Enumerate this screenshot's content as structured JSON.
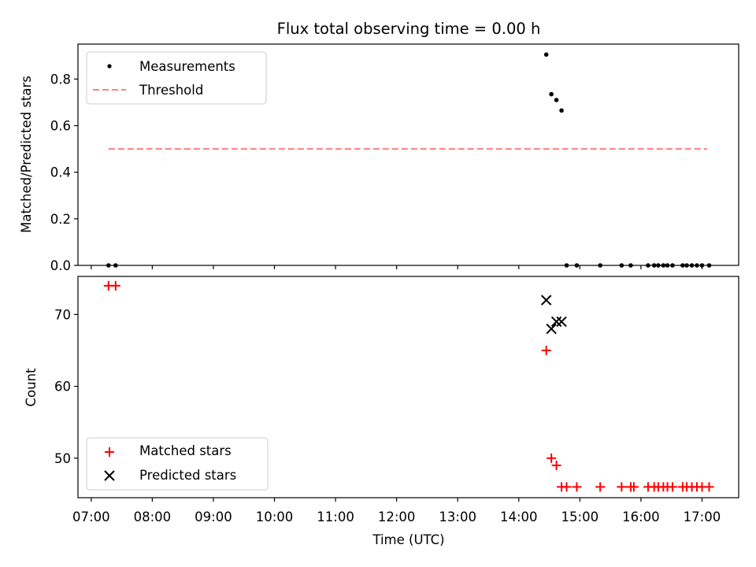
{
  "chart_data": [
    {
      "type": "scatter",
      "title": "Flux total observing time = 0.00 h",
      "xlabel": "",
      "ylabel": "Matched/Predicted stars",
      "xlim": [
        "06:47",
        "17:36"
      ],
      "ylim": [
        0,
        0.95
      ],
      "yticks": [
        "0.0",
        "0.2",
        "0.4",
        "0.6",
        "0.8"
      ],
      "legend": {
        "position": "top-left",
        "entries": [
          "Measurements",
          "Threshold"
        ]
      },
      "threshold": {
        "value": 0.5,
        "x_start": "07:17",
        "x_end": "17:05",
        "color": "#ff7f7f"
      },
      "series": [
        {
          "name": "Measurements",
          "color": "#000000",
          "points": [
            [
              "07:17",
              0.0
            ],
            [
              "07:24",
              0.0
            ],
            [
              "14:27",
              0.905
            ],
            [
              "14:32",
              0.735
            ],
            [
              "14:37",
              0.71
            ],
            [
              "14:42",
              0.665
            ],
            [
              "14:47",
              0.0
            ],
            [
              "14:57",
              0.0
            ],
            [
              "15:20",
              0.0
            ],
            [
              "15:41",
              0.0
            ],
            [
              "15:50",
              0.0
            ],
            [
              "16:07",
              0.0
            ],
            [
              "16:13",
              0.0
            ],
            [
              "16:17",
              0.0
            ],
            [
              "16:22",
              0.0
            ],
            [
              "16:26",
              0.0
            ],
            [
              "16:31",
              0.0
            ],
            [
              "16:41",
              0.0
            ],
            [
              "16:45",
              0.0
            ],
            [
              "16:50",
              0.0
            ],
            [
              "16:55",
              0.0
            ],
            [
              "17:00",
              0.0
            ],
            [
              "17:07",
              0.0
            ]
          ]
        }
      ]
    },
    {
      "type": "scatter",
      "title": "",
      "xlabel": "Time (UTC)",
      "ylabel": "Count",
      "xlim": [
        "06:47",
        "17:36"
      ],
      "ylim": [
        44.5,
        75.3
      ],
      "xticks": [
        "07:00",
        "08:00",
        "09:00",
        "10:00",
        "11:00",
        "12:00",
        "13:00",
        "14:00",
        "15:00",
        "16:00",
        "17:00"
      ],
      "yticks": [
        "50",
        "60",
        "70"
      ],
      "legend": {
        "position": "bottom-left",
        "entries": [
          "Matched stars",
          "Predicted stars"
        ]
      },
      "series": [
        {
          "name": "Matched stars",
          "marker": "+",
          "color": "#ff0000",
          "points": [
            [
              "07:17",
              74
            ],
            [
              "07:24",
              74
            ],
            [
              "14:27",
              65
            ],
            [
              "14:32",
              50
            ],
            [
              "14:37",
              49
            ],
            [
              "14:42",
              46
            ],
            [
              "14:47",
              46
            ],
            [
              "14:57",
              46
            ],
            [
              "15:20",
              46
            ],
            [
              "15:41",
              46
            ],
            [
              "15:50",
              46
            ],
            [
              "15:53",
              46
            ],
            [
              "16:07",
              46
            ],
            [
              "16:13",
              46
            ],
            [
              "16:17",
              46
            ],
            [
              "16:22",
              46
            ],
            [
              "16:26",
              46
            ],
            [
              "16:31",
              46
            ],
            [
              "16:41",
              46
            ],
            [
              "16:45",
              46
            ],
            [
              "16:50",
              46
            ],
            [
              "16:55",
              46
            ],
            [
              "17:00",
              46
            ],
            [
              "17:07",
              46
            ]
          ]
        },
        {
          "name": "Predicted stars",
          "marker": "x",
          "color": "#000000",
          "points": [
            [
              "14:27",
              72
            ],
            [
              "14:32",
              68
            ],
            [
              "14:37",
              69
            ],
            [
              "14:42",
              69
            ]
          ]
        }
      ]
    }
  ]
}
